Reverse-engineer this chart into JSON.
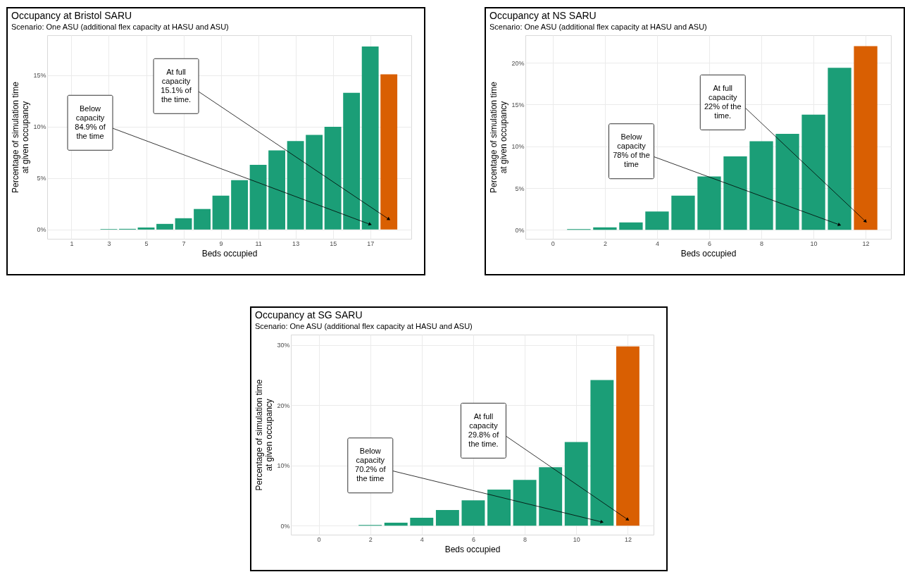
{
  "chart_data": [
    {
      "type": "bar",
      "title": "Occupancy at Bristol SARU",
      "subtitle": "Scenario: One ASU (additional flex capacity at HASU and ASU)",
      "xlabel": "Beds occupied",
      "ylabel": "Percentage of simulation time\nat given occupancy",
      "x": [
        3,
        4,
        5,
        6,
        7,
        8,
        9,
        10,
        11,
        12,
        13,
        14,
        15,
        16,
        17,
        18
      ],
      "values": [
        0.05,
        0.07,
        0.2,
        0.55,
        1.1,
        2.0,
        3.3,
        4.8,
        6.3,
        7.7,
        8.6,
        9.2,
        10.0,
        13.3,
        17.8,
        15.1
      ],
      "colors": [
        "#1b9e77",
        "#1b9e77",
        "#1b9e77",
        "#1b9e77",
        "#1b9e77",
        "#1b9e77",
        "#1b9e77",
        "#1b9e77",
        "#1b9e77",
        "#1b9e77",
        "#1b9e77",
        "#1b9e77",
        "#1b9e77",
        "#1b9e77",
        "#1b9e77",
        "#d95f02"
      ],
      "xlim": [
        -0.3,
        19.2
      ],
      "xticks": [
        1,
        3,
        5,
        7,
        9,
        11,
        13,
        15,
        17
      ],
      "ylim": [
        -0.9,
        18.9
      ],
      "yticks": [
        {
          "value": 0,
          "label": "0%"
        },
        {
          "value": 5,
          "label": "5%"
        },
        {
          "value": 10,
          "label": "10%"
        },
        {
          "value": 15,
          "label": "15%"
        }
      ],
      "grid": true,
      "annotations": [
        {
          "text": "Below\ncapacity\n84.9% of\nthe time",
          "x": 17,
          "y": 0.5
        },
        {
          "text": "At full\ncapacity\n15.1% of\nthe time.",
          "x": 18,
          "y": 1.0
        }
      ]
    },
    {
      "type": "bar",
      "title": "Occupancy at NS SARU",
      "subtitle": "Scenario: One ASU (additional flex capacity at HASU and ASU)",
      "xlabel": "Beds occupied",
      "ylabel": "Percentage of simulation time\nat given occupancy",
      "x": [
        1,
        2,
        3,
        4,
        5,
        6,
        7,
        8,
        9,
        10,
        11,
        12
      ],
      "values": [
        0.1,
        0.3,
        0.9,
        2.2,
        4.1,
        6.4,
        8.8,
        10.6,
        11.5,
        13.8,
        19.4,
        22.0
      ],
      "colors": [
        "#1b9e77",
        "#1b9e77",
        "#1b9e77",
        "#1b9e77",
        "#1b9e77",
        "#1b9e77",
        "#1b9e77",
        "#1b9e77",
        "#1b9e77",
        "#1b9e77",
        "#1b9e77",
        "#d95f02"
      ],
      "xlim": [
        -1.05,
        12.97
      ],
      "xticks": [
        0,
        2,
        4,
        6,
        8,
        10,
        12
      ],
      "ylim": [
        -1.07,
        23.3
      ],
      "yticks": [
        {
          "value": 0,
          "label": "0%"
        },
        {
          "value": 5,
          "label": "5%"
        },
        {
          "value": 10,
          "label": "10%"
        },
        {
          "value": 15,
          "label": "15%"
        },
        {
          "value": 20,
          "label": "20%"
        }
      ],
      "grid": true,
      "annotations": [
        {
          "text": "Below\ncapacity\n78% of the\ntime",
          "x": 11,
          "y": 0.6
        },
        {
          "text": "At full\ncapacity\n22% of the\ntime.",
          "x": 12,
          "y": 1.0
        }
      ]
    },
    {
      "type": "bar",
      "title": "Occupancy at SG SARU",
      "subtitle": "Scenario: One ASU (additional flex capacity at HASU and ASU)",
      "xlabel": "Beds occupied",
      "ylabel": "Percentage of simulation time\nat given occupancy",
      "x": [
        2,
        3,
        4,
        5,
        6,
        7,
        8,
        9,
        10,
        11,
        12
      ],
      "values": [
        0.1,
        0.5,
        1.3,
        2.6,
        4.2,
        6.0,
        7.6,
        9.7,
        13.9,
        24.2,
        29.8
      ],
      "colors": [
        "#1b9e77",
        "#1b9e77",
        "#1b9e77",
        "#1b9e77",
        "#1b9e77",
        "#1b9e77",
        "#1b9e77",
        "#1b9e77",
        "#1b9e77",
        "#1b9e77",
        "#d95f02"
      ],
      "xlim": [
        -1.08,
        13.0
      ],
      "xticks": [
        0,
        2,
        4,
        6,
        8,
        10,
        12
      ],
      "ylim": [
        -1.5,
        31.75
      ],
      "yticks": [
        {
          "value": 0,
          "label": "0%"
        },
        {
          "value": 10,
          "label": "10%"
        },
        {
          "value": 20,
          "label": "20%"
        },
        {
          "value": 30,
          "label": "30%"
        }
      ],
      "grid": true,
      "annotations": [
        {
          "text": "Below\ncapacity\n70.2% of\nthe time",
          "x": 11,
          "y": 0.6
        },
        {
          "text": "At full\ncapacity\n29.8% of\nthe time.",
          "x": 12,
          "y": 1.0
        }
      ]
    }
  ]
}
